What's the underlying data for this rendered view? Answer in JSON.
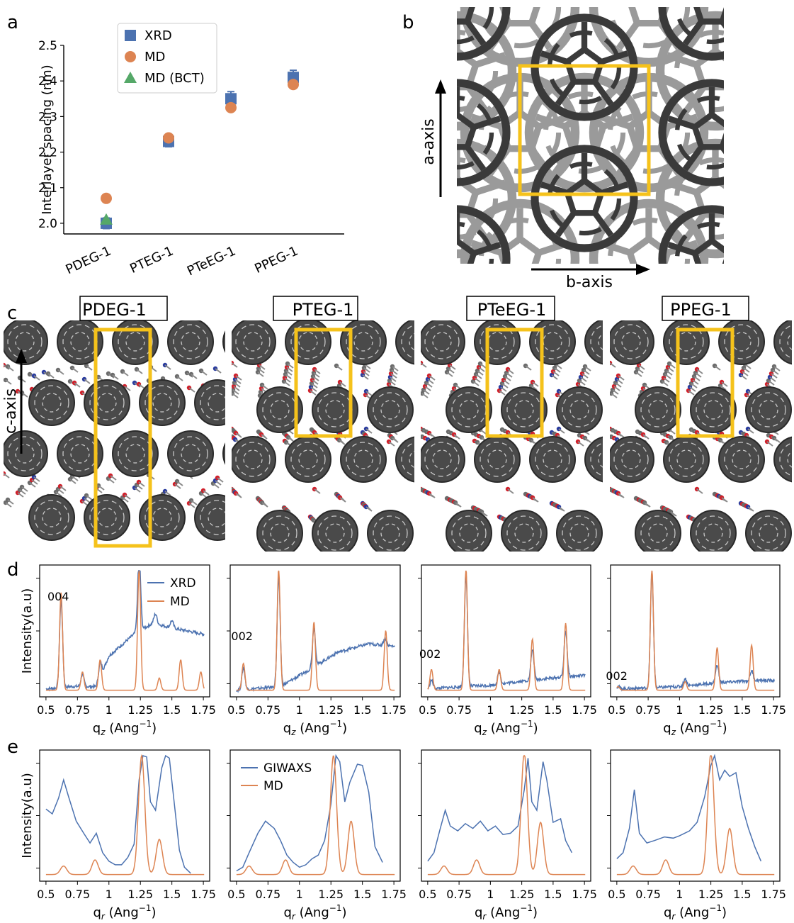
{
  "panel_letters": {
    "a": "a",
    "b": "b",
    "c": "c",
    "d": "d",
    "e": "e"
  },
  "colors": {
    "xrd": "#4c72b0",
    "md": "#dd8452",
    "bct": "#55a868",
    "cell": "#f5c21b",
    "c60_dark": "#3a3a3a",
    "c60_light": "#9a9a9a"
  },
  "panel_b": {
    "a_axis_label": "a-axis",
    "b_axis_label": "b-axis"
  },
  "panel_c": {
    "c_axis_label": "c-axis",
    "titles": [
      "PDEG-1",
      "PTEG-1",
      "PTeEG-1",
      "PPEG-1"
    ]
  },
  "chart_data": [
    {
      "id": "a",
      "type": "scatter",
      "ylabel": "Interlayer spacing (nm)",
      "categories": [
        "PDEG-1",
        "PTEG-1",
        "PTeEG-1",
        "PPEG-1"
      ],
      "ylim": [
        1.97,
        2.5
      ],
      "yticks": [
        2.0,
        2.1,
        2.2,
        2.3,
        2.4,
        2.5
      ],
      "legend": {
        "position": "top-left",
        "entries": [
          "XRD",
          "MD",
          "MD (BCT)"
        ]
      },
      "series": [
        {
          "name": "XRD",
          "marker": "square",
          "values": [
            2.0,
            2.23,
            2.35,
            2.41
          ],
          "errors": [
            0.015,
            0.015,
            0.02,
            0.02
          ]
        },
        {
          "name": "MD",
          "marker": "circle",
          "values": [
            2.07,
            2.24,
            2.325,
            2.39
          ]
        },
        {
          "name": "MD (BCT)",
          "marker": "triangle",
          "values": [
            2.01,
            null,
            null,
            null
          ]
        }
      ]
    },
    {
      "id": "d",
      "type": "line",
      "ylabel": "Intensity(a.u)",
      "xlabel": "q$_z$ (Ang$^{-1}$)",
      "xlabel_main": "q",
      "xlabel_sub": "z",
      "xlabel_rest": " (Ang",
      "xlabel_sup": "−1",
      "xlabel_end": ")",
      "xlim": [
        0.45,
        1.8
      ],
      "xticks": [
        "0.5",
        "0.75",
        "1",
        "1.25",
        "1.5",
        "1.75"
      ],
      "xtick_values": [
        0.5,
        0.75,
        1.0,
        1.25,
        1.5,
        1.75
      ],
      "legend": {
        "position": "top-right",
        "entries": [
          "XRD",
          "MD"
        ]
      },
      "subplots": [
        {
          "annotation": "004",
          "annotation_x": 0.62,
          "md_peaks": [
            [
              0.62,
              0.8
            ],
            [
              0.79,
              0.15
            ],
            [
              0.93,
              0.25
            ],
            [
              1.24,
              1.0
            ],
            [
              1.4,
              0.1
            ],
            [
              1.57,
              0.25
            ],
            [
              1.73,
              0.15
            ]
          ],
          "xrd_background": [
            [
              0.5,
              0.03
            ],
            [
              0.7,
              0.05
            ],
            [
              0.9,
              0.05
            ],
            [
              1.0,
              0.3
            ],
            [
              1.2,
              0.48
            ],
            [
              1.35,
              0.57
            ],
            [
              1.5,
              0.53
            ],
            [
              1.75,
              0.48
            ]
          ],
          "xrd_peaks": [
            [
              0.62,
              0.72
            ],
            [
              0.79,
              0.1
            ],
            [
              0.93,
              0.12
            ],
            [
              1.24,
              0.6
            ],
            [
              1.37,
              0.08
            ],
            [
              1.5,
              0.06
            ]
          ]
        },
        {
          "annotation": "002",
          "annotation_x": 0.555,
          "md_peaks": [
            [
              0.555,
              0.22
            ],
            [
              0.835,
              1.0
            ],
            [
              1.115,
              0.56
            ],
            [
              1.685,
              0.49
            ]
          ],
          "xrd_background": [
            [
              0.5,
              0.02
            ],
            [
              0.85,
              0.05
            ],
            [
              1.1,
              0.2
            ],
            [
              1.3,
              0.33
            ],
            [
              1.55,
              0.4
            ],
            [
              1.75,
              0.38
            ]
          ],
          "xrd_peaks": [
            [
              0.555,
              0.18
            ],
            [
              0.835,
              0.9
            ],
            [
              1.115,
              0.32
            ],
            [
              1.68,
              0.06
            ]
          ]
        },
        {
          "annotation": "002",
          "annotation_x": 0.53,
          "md_peaks": [
            [
              0.53,
              0.17
            ],
            [
              0.805,
              1.0
            ],
            [
              1.07,
              0.17
            ],
            [
              1.335,
              0.42
            ],
            [
              1.6,
              0.55
            ]
          ],
          "xrd_background": [
            [
              0.5,
              0.03
            ],
            [
              0.8,
              0.05
            ],
            [
              1.0,
              0.06
            ],
            [
              1.3,
              0.1
            ],
            [
              1.6,
              0.13
            ],
            [
              1.75,
              0.14
            ]
          ],
          "xrd_peaks": [
            [
              0.53,
              0.07
            ],
            [
              0.805,
              0.92
            ],
            [
              1.07,
              0.1
            ],
            [
              1.335,
              0.25
            ],
            [
              1.6,
              0.38
            ]
          ]
        },
        {
          "annotation": "002",
          "annotation_x": 0.51,
          "md_peaks": [
            [
              0.51,
              0.03
            ],
            [
              0.78,
              1.0
            ],
            [
              1.045,
              0.07
            ],
            [
              1.3,
              0.35
            ],
            [
              1.575,
              0.37
            ]
          ],
          "xrd_background": [
            [
              0.5,
              0.03
            ],
            [
              0.8,
              0.04
            ],
            [
              1.0,
              0.05
            ],
            [
              1.3,
              0.08
            ],
            [
              1.6,
              0.1
            ],
            [
              1.75,
              0.1
            ]
          ],
          "xrd_peaks": [
            [
              0.51,
              0.02
            ],
            [
              0.78,
              0.95
            ],
            [
              1.045,
              0.06
            ],
            [
              1.3,
              0.15
            ],
            [
              1.575,
              0.08
            ]
          ]
        }
      ]
    },
    {
      "id": "e",
      "type": "line",
      "ylabel": "Intensity(a.u)",
      "xlabel": "q$_r$ (Ang$^{-1}$)",
      "xlabel_main": "q",
      "xlabel_sub": "r",
      "xlabel_rest": " (Ang",
      "xlabel_sup": "−1",
      "xlabel_end": ")",
      "xlim": [
        0.45,
        1.8
      ],
      "xticks": [
        "0.5",
        "0.75",
        "1",
        "1.25",
        "1.5",
        "1.75"
      ],
      "xtick_values": [
        0.5,
        0.75,
        1.0,
        1.25,
        1.5,
        1.75
      ],
      "legend": {
        "position": "top-left",
        "entries": [
          "GIWAXS",
          "MD"
        ]
      },
      "subplots": [
        {
          "md_peaks": [
            [
              0.64,
              0.07
            ],
            [
              0.89,
              0.12
            ],
            [
              1.26,
              0.98
            ],
            [
              1.4,
              0.29
            ]
          ],
          "giwaxs": [
            [
              0.5,
              0.56
            ],
            [
              0.55,
              0.52
            ],
            [
              0.6,
              0.65
            ],
            [
              0.64,
              0.8
            ],
            [
              0.68,
              0.66
            ],
            [
              0.74,
              0.46
            ],
            [
              0.8,
              0.36
            ],
            [
              0.85,
              0.28
            ],
            [
              0.9,
              0.36
            ],
            [
              0.95,
              0.2
            ],
            [
              1.0,
              0.13
            ],
            [
              1.05,
              0.1
            ],
            [
              1.1,
              0.1
            ],
            [
              1.15,
              0.16
            ],
            [
              1.2,
              0.27
            ],
            [
              1.24,
              0.8
            ],
            [
              1.27,
              1.0
            ],
            [
              1.3,
              0.99
            ],
            [
              1.33,
              0.62
            ],
            [
              1.37,
              0.55
            ],
            [
              1.42,
              0.9
            ],
            [
              1.45,
              1.0
            ],
            [
              1.48,
              0.98
            ],
            [
              1.52,
              0.6
            ],
            [
              1.56,
              0.22
            ],
            [
              1.6,
              0.08
            ],
            [
              1.65,
              0.03
            ]
          ]
        },
        {
          "md_peaks": [
            [
              0.6,
              0.07
            ],
            [
              0.89,
              0.12
            ],
            [
              1.27,
              0.98
            ],
            [
              1.41,
              0.44
            ]
          ],
          "giwaxs": [
            [
              0.5,
              0.05
            ],
            [
              0.55,
              0.08
            ],
            [
              0.6,
              0.2
            ],
            [
              0.67,
              0.36
            ],
            [
              0.73,
              0.46
            ],
            [
              0.8,
              0.4
            ],
            [
              0.85,
              0.3
            ],
            [
              0.9,
              0.18
            ],
            [
              0.95,
              0.12
            ],
            [
              1.0,
              0.08
            ],
            [
              1.05,
              0.1
            ],
            [
              1.1,
              0.15
            ],
            [
              1.15,
              0.18
            ],
            [
              1.2,
              0.3
            ],
            [
              1.25,
              0.6
            ],
            [
              1.29,
              1.0
            ],
            [
              1.32,
              0.95
            ],
            [
              1.36,
              0.62
            ],
            [
              1.4,
              0.78
            ],
            [
              1.46,
              0.93
            ],
            [
              1.5,
              0.92
            ],
            [
              1.55,
              0.7
            ],
            [
              1.6,
              0.25
            ],
            [
              1.66,
              0.12
            ]
          ]
        },
        {
          "md_peaks": [
            [
              0.63,
              0.07
            ],
            [
              0.89,
              0.12
            ],
            [
              1.27,
              1.0
            ],
            [
              1.4,
              0.43
            ]
          ],
          "giwaxs": [
            [
              0.5,
              0.13
            ],
            [
              0.55,
              0.2
            ],
            [
              0.6,
              0.4
            ],
            [
              0.64,
              0.55
            ],
            [
              0.68,
              0.42
            ],
            [
              0.74,
              0.38
            ],
            [
              0.8,
              0.44
            ],
            [
              0.86,
              0.4
            ],
            [
              0.92,
              0.46
            ],
            [
              0.98,
              0.38
            ],
            [
              1.04,
              0.42
            ],
            [
              1.1,
              0.35
            ],
            [
              1.16,
              0.36
            ],
            [
              1.22,
              0.42
            ],
            [
              1.27,
              0.72
            ],
            [
              1.3,
              0.98
            ],
            [
              1.33,
              0.62
            ],
            [
              1.37,
              0.55
            ],
            [
              1.42,
              0.95
            ],
            [
              1.45,
              0.8
            ],
            [
              1.5,
              0.45
            ],
            [
              1.56,
              0.48
            ],
            [
              1.6,
              0.3
            ],
            [
              1.65,
              0.2
            ]
          ]
        },
        {
          "md_peaks": [
            [
              0.63,
              0.07
            ],
            [
              0.89,
              0.12
            ],
            [
              1.25,
              1.0
            ],
            [
              1.4,
              0.38
            ]
          ],
          "giwaxs": [
            [
              0.5,
              0.15
            ],
            [
              0.55,
              0.2
            ],
            [
              0.6,
              0.4
            ],
            [
              0.64,
              0.72
            ],
            [
              0.68,
              0.36
            ],
            [
              0.74,
              0.28
            ],
            [
              0.8,
              0.3
            ],
            [
              0.88,
              0.33
            ],
            [
              0.95,
              0.32
            ],
            [
              1.0,
              0.34
            ],
            [
              1.08,
              0.38
            ],
            [
              1.14,
              0.45
            ],
            [
              1.2,
              0.66
            ],
            [
              1.25,
              0.92
            ],
            [
              1.28,
              1.0
            ],
            [
              1.32,
              0.8
            ],
            [
              1.36,
              0.88
            ],
            [
              1.4,
              0.83
            ],
            [
              1.45,
              0.86
            ],
            [
              1.5,
              0.58
            ],
            [
              1.55,
              0.4
            ],
            [
              1.6,
              0.25
            ],
            [
              1.65,
              0.13
            ]
          ]
        }
      ]
    }
  ]
}
